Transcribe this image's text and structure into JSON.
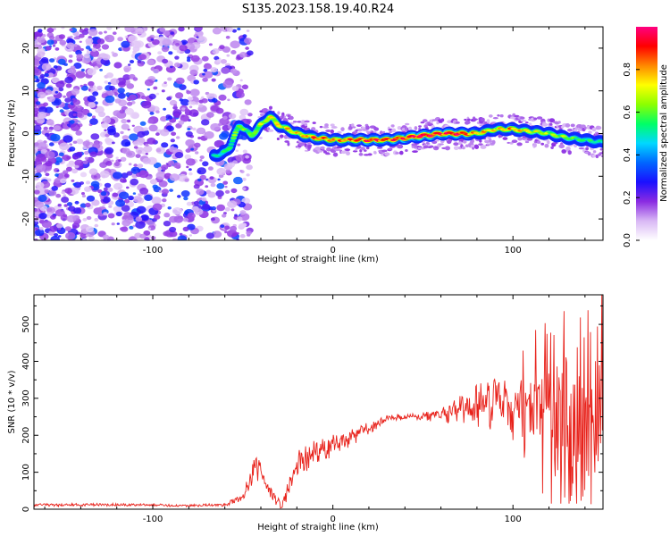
{
  "title": "S135.2023.158.19.40.R24",
  "chart_data": [
    {
      "type": "heatmap",
      "xlabel": "Height of straight line (km)",
      "ylabel": "Frequency (Hz)",
      "xlim": [
        -166,
        150
      ],
      "ylim": [
        -25,
        25
      ],
      "x_ticks": [
        -100,
        0,
        100
      ],
      "y_ticks": [
        -20,
        -10,
        0,
        10,
        20
      ],
      "colorbar": {
        "label": "Normalized spectral amplitude",
        "range": [
          0,
          1
        ],
        "ticks": [
          "0.0",
          "0.2",
          "0.4",
          "0.6",
          "0.8"
        ],
        "colors": [
          "#ffffff",
          "#d9b8f5",
          "#8a2be2",
          "#1a10ff",
          "#0066ff",
          "#00d8ff",
          "#00ff66",
          "#8cff00",
          "#ffff00",
          "#ff8800",
          "#ff0000",
          "#ff0080"
        ]
      },
      "ridge": {
        "x": [
          -62,
          -57,
          -52,
          -45,
          -40,
          -35,
          -30,
          -20,
          -10,
          0,
          10,
          20,
          30,
          40,
          50,
          60,
          70,
          80,
          90,
          100,
          110,
          120,
          130,
          140,
          148
        ],
        "freq": [
          -5,
          -3,
          2,
          -0.5,
          2,
          4,
          2,
          0,
          -1,
          -1.5,
          -1.5,
          -1.5,
          -1.5,
          -1,
          -0.5,
          0,
          0,
          0,
          1,
          1,
          0.5,
          0,
          -1,
          -1.5,
          -2
        ],
        "amplitude": [
          0.35,
          0.45,
          0.5,
          0.45,
          0.55,
          0.6,
          0.65,
          0.65,
          0.8,
          0.75,
          0.8,
          0.9,
          0.85,
          0.9,
          1.0,
          0.9,
          0.95,
          0.7,
          0.65,
          0.75,
          0.6,
          0.55,
          0.5,
          0.4,
          0.35
        ]
      }
    },
    {
      "type": "line",
      "xlabel": "Height of straight line (km)",
      "ylabel": "SNR (10 * v/v)",
      "xlim": [
        -166,
        150
      ],
      "ylim": [
        0,
        580
      ],
      "x_ticks": [
        -100,
        0,
        100
      ],
      "y_ticks": [
        0,
        100,
        200,
        300,
        400,
        500
      ],
      "series": [
        {
          "color": "#e8221b",
          "envelope_x": [
            -166,
            -120,
            -80,
            -60,
            -50,
            -45,
            -43,
            -40,
            -35,
            -28,
            -20,
            -10,
            0,
            10,
            20,
            30,
            40,
            50,
            60,
            70,
            80,
            90,
            100,
            110,
            115,
            120,
            125,
            130,
            135,
            140,
            150
          ],
          "envelope_mean": [
            12,
            12,
            10,
            12,
            30,
            90,
            140,
            90,
            40,
            10,
            120,
            150,
            175,
            190,
            220,
            245,
            250,
            250,
            255,
            270,
            285,
            280,
            270,
            270,
            260,
            250,
            240,
            230,
            210,
            200,
            210
          ],
          "envelope_amplitude": [
            4,
            4,
            3,
            4,
            15,
            30,
            50,
            40,
            25,
            10,
            40,
            35,
            30,
            25,
            15,
            10,
            8,
            10,
            20,
            40,
            60,
            80,
            70,
            90,
            120,
            150,
            170,
            200,
            200,
            190,
            180
          ]
        }
      ]
    }
  ]
}
